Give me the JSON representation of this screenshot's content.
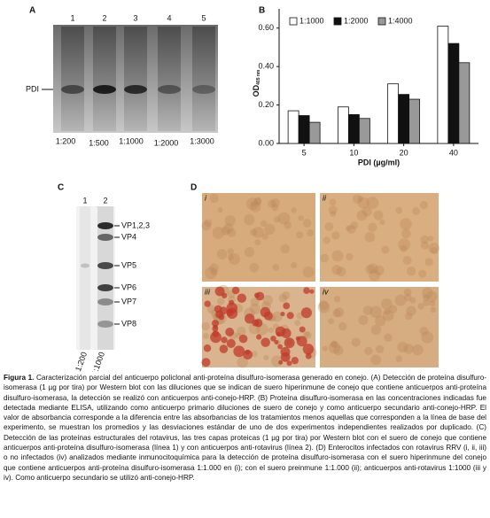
{
  "panels": {
    "a": {
      "letter": "A",
      "lanes": [
        "1",
        "2",
        "3",
        "4",
        "5"
      ],
      "band_label": "PDI",
      "dilutions": [
        "1:200",
        "1:500",
        "1:1000",
        "1:2000",
        "1:3000"
      ]
    },
    "c": {
      "letter": "C",
      "lanes": [
        "1",
        "2"
      ],
      "bands": [
        "VP1,2,3",
        "VP4",
        "VP5",
        "VP6",
        "VP7",
        "VP8"
      ],
      "dilutions": [
        "1:200",
        "1:1000"
      ]
    },
    "d": {
      "letter": "D",
      "images": [
        "i",
        "ii",
        "iii",
        "iv"
      ]
    }
  },
  "chart_data": {
    "type": "bar",
    "letter": "B",
    "categories": [
      "5",
      "10",
      "20",
      "40"
    ],
    "x_label": "PDI (µg/ml)",
    "y_label": "OD",
    "y_label_sub": "405 nm",
    "series": [
      {
        "name": "1:1000",
        "color": "#ffffff",
        "values": [
          0.17,
          0.19,
          0.31,
          0.61
        ]
      },
      {
        "name": "1:2000",
        "color": "#111111",
        "values": [
          0.145,
          0.15,
          0.255,
          0.52
        ]
      },
      {
        "name": "1:4000",
        "color": "#999999",
        "values": [
          0.11,
          0.13,
          0.23,
          0.42
        ]
      }
    ],
    "ylim": [
      0,
      0.7
    ],
    "yticks": [
      {
        "value": 0,
        "label": "0.00"
      },
      {
        "value": 0.2,
        "label": "0.20"
      },
      {
        "value": 0.4,
        "label": "0.40"
      },
      {
        "value": 0.6,
        "label": "0.60"
      }
    ],
    "legend": "top-left"
  },
  "caption": {
    "label": "Figura 1.",
    "text": "Caracterización parcial del anticuerpo policlonal anti-proteína disulfuro-isomerasa generado en conejo. (A) Detección de proteína disulfuro-isomerasa (1 µg por tira) por Western blot con las diluciones que se indican de suero hiperinmune de conejo que contiene anticuerpos anti-proteína disulfuro-isomerasa, la detección se realizó con anticuerpos anti-conejo-HRP. (B) Proteína disulfuro-isomerasa en las concentraciones indicadas fue detectada mediante ELISA, utilizando como anticuerpo primario diluciones de suero de conejo y como anticuerpo secundario anti-conejo-HRP. El valor de absorbancia corresponde a la diferencia entre las absorbancias de los tratamientos menos aquellas que corresponden a la línea de base del experimento, se muestran los promedios y las desviaciones estándar de uno de dos experimentos independientes realizados por duplicado. (C) Detección de las proteínas estructurales del rotavirus, las tres capas proteicas (1 µg por tira) por Western blot con el suero de conejo que contiene anticuerpos anti-proteína disulfuro-isomerasa (línea 1) y con anticuerpos anti-rotavirus (línea 2). (D) Enterocitos infectados con rotavirus RRV (i, ii, iii) o no infectados (iv) analizados mediante inmunocitoquímica para la detección de proteína disulfuro-isomerasa con el suero hiperinmune del conejo que contiene anticuerpos anti-proteína disulfuro-isomerasa 1:1.000 en (i); con el suero preinmune 1:1.000 (ii); anticuerpos anti-rotavirus 1:1000 (iii y iv). Como anticuerpo secundario se utilizó anti-conejo-HRP."
  }
}
